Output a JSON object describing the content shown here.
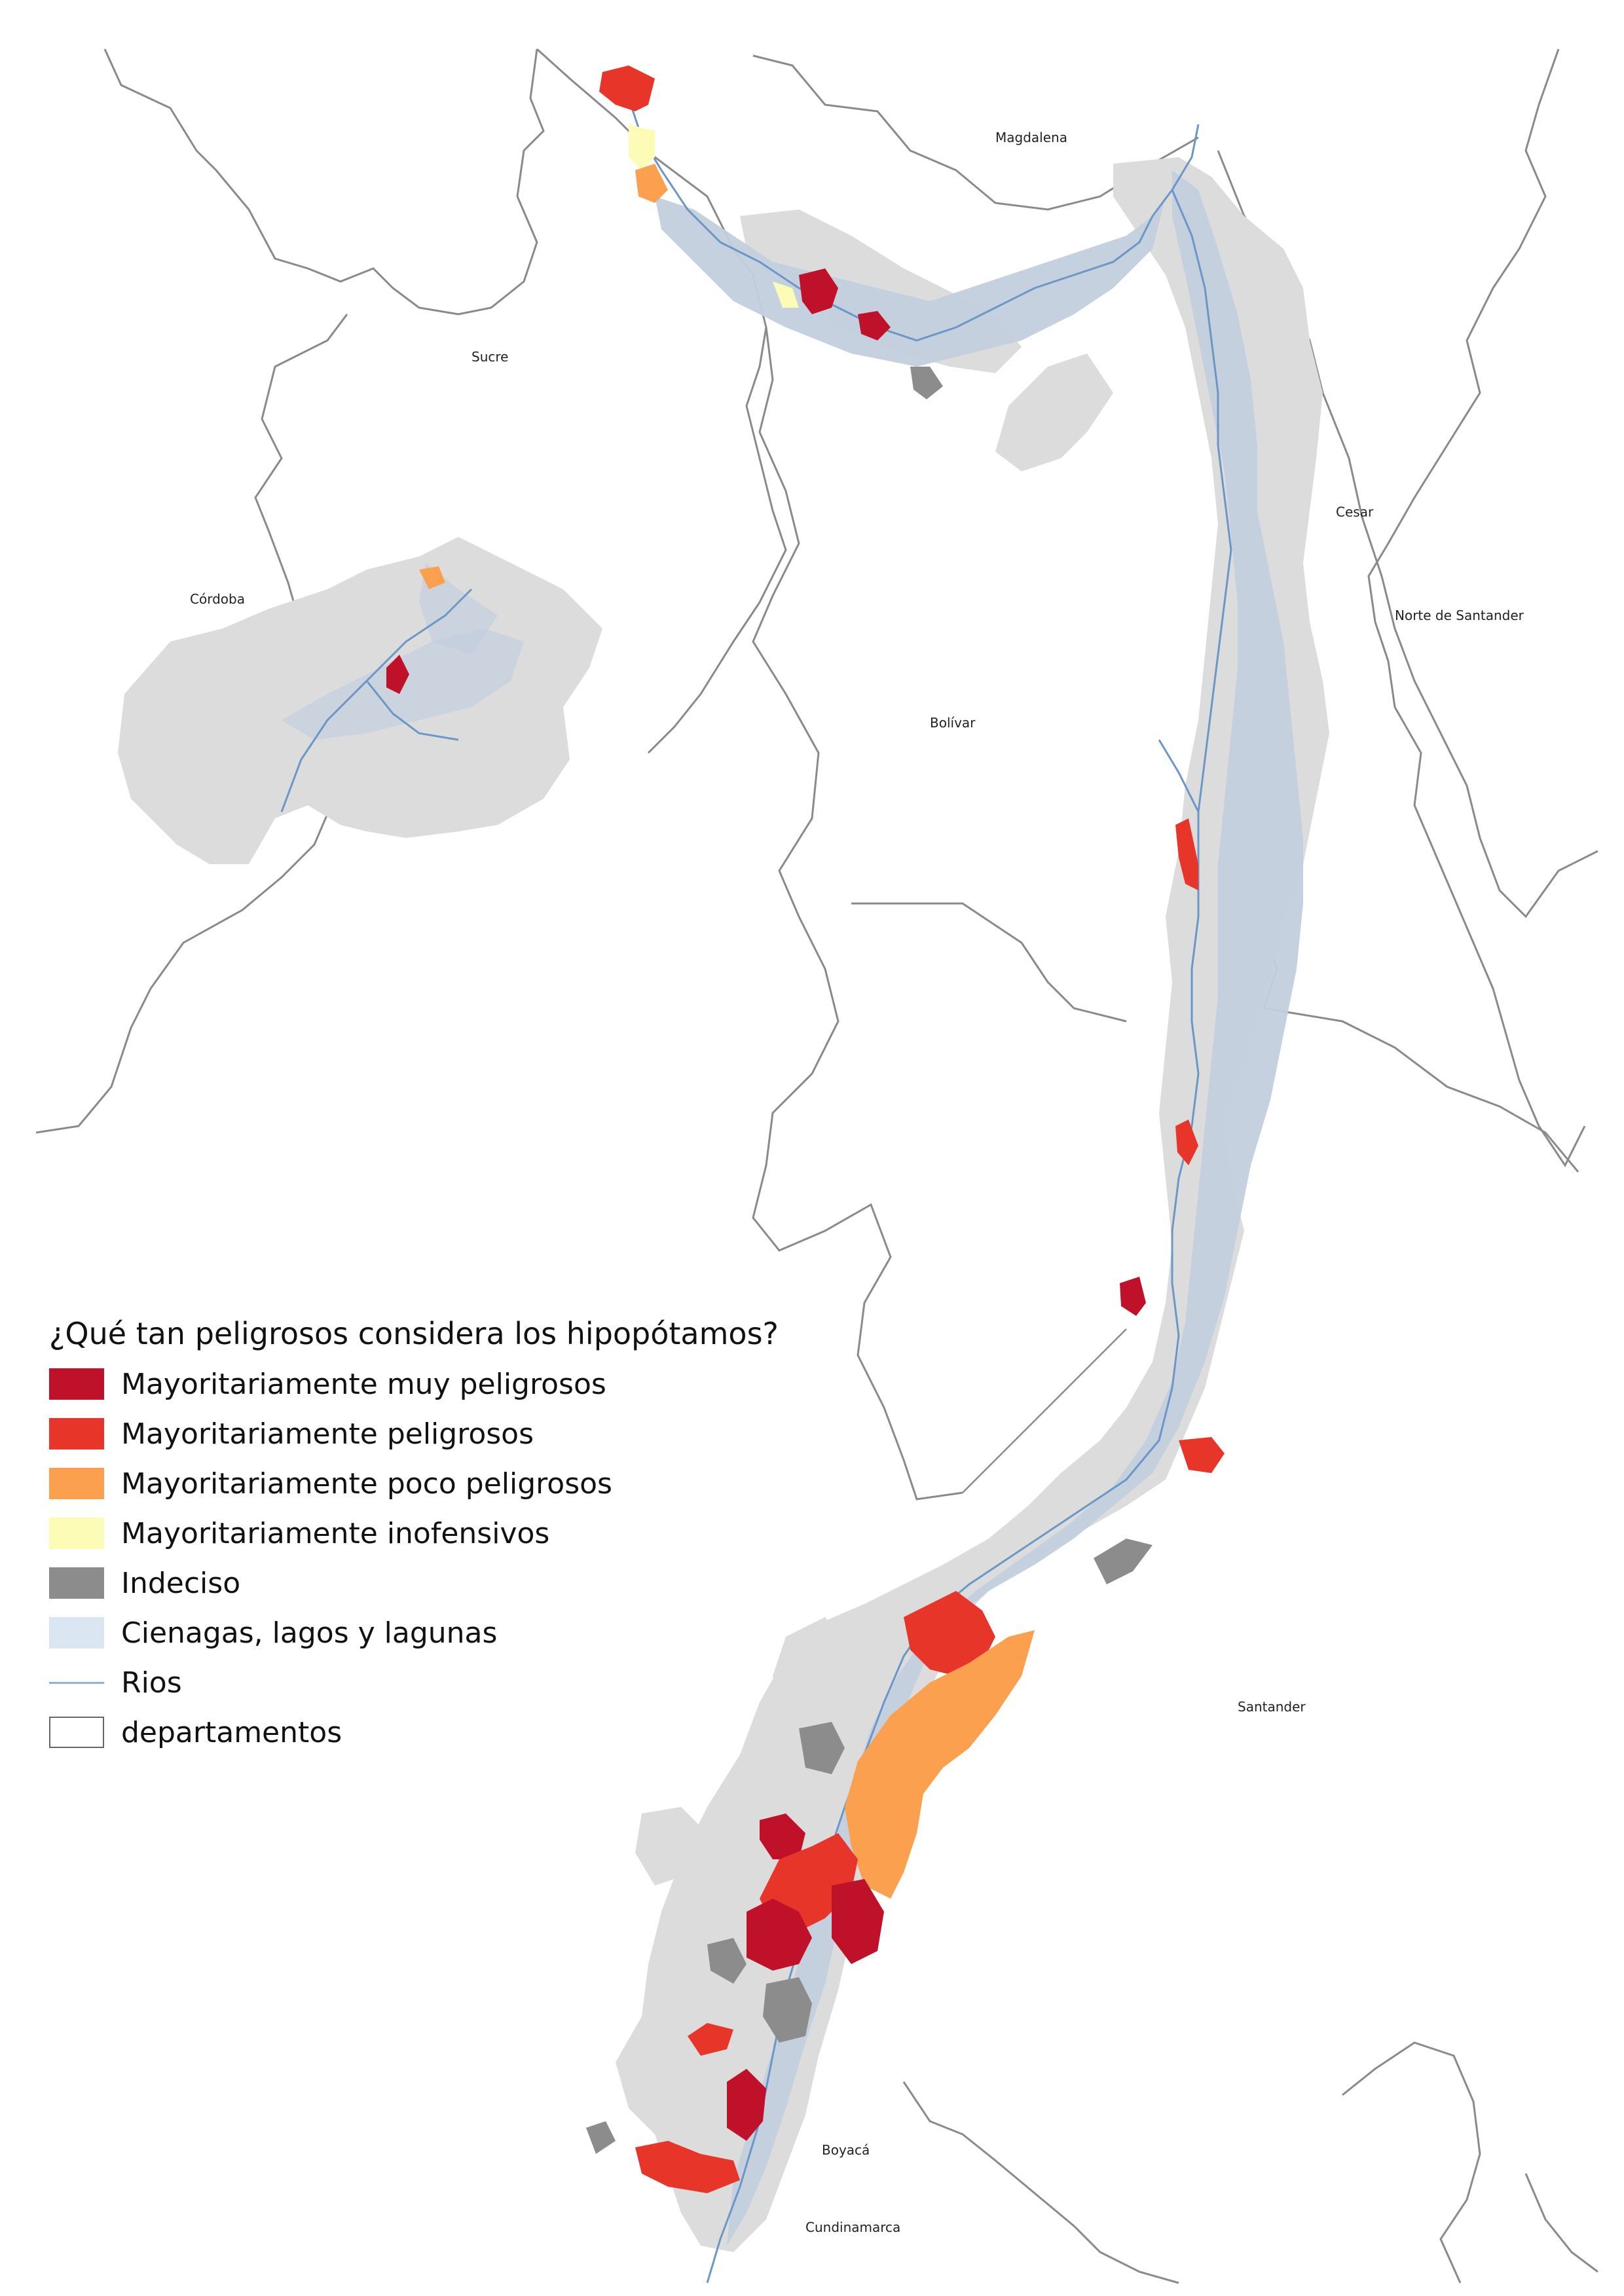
{
  "departments": {
    "magdalena": "Magdalena",
    "sucre": "Sucre",
    "cordoba": "Córdoba",
    "cesar": "Cesar",
    "norte_santander": "Norte de Santander",
    "bolivar": "Bolívar",
    "santander": "Santander",
    "boyaca": "Boyacá",
    "cundinamarca": "Cundinamarca"
  },
  "legend": {
    "title": "¿Qué tan peligrosos considera los hipopótamos?",
    "items": [
      {
        "label": "Mayoritariamente muy peligrosos",
        "color": "#c0112b",
        "kind": "fill"
      },
      {
        "label": "Mayoritariamente peligrosos",
        "color": "#e8352a",
        "kind": "fill"
      },
      {
        "label": "Mayoritariamente poco peligrosos",
        "color": "#fba04f",
        "kind": "fill"
      },
      {
        "label": "Mayoritariamente inofensivos",
        "color": "#fdfcb7",
        "kind": "fill"
      },
      {
        "label": "Indeciso",
        "color": "#8c8c8c",
        "kind": "fill"
      },
      {
        "label": "Cienagas, lagos y lagunas",
        "color": "#dbe6f3",
        "kind": "fill"
      },
      {
        "label": "Rios",
        "color": "#8fb2d6",
        "kind": "line"
      },
      {
        "label": "departamentos",
        "color": "#ffffff",
        "kind": "outline"
      }
    ]
  },
  "colors": {
    "municipio_base": "#dcdcdc",
    "wetland": "#c3cfdf",
    "river": "#6b97c8",
    "border": "#8a8a8a"
  }
}
